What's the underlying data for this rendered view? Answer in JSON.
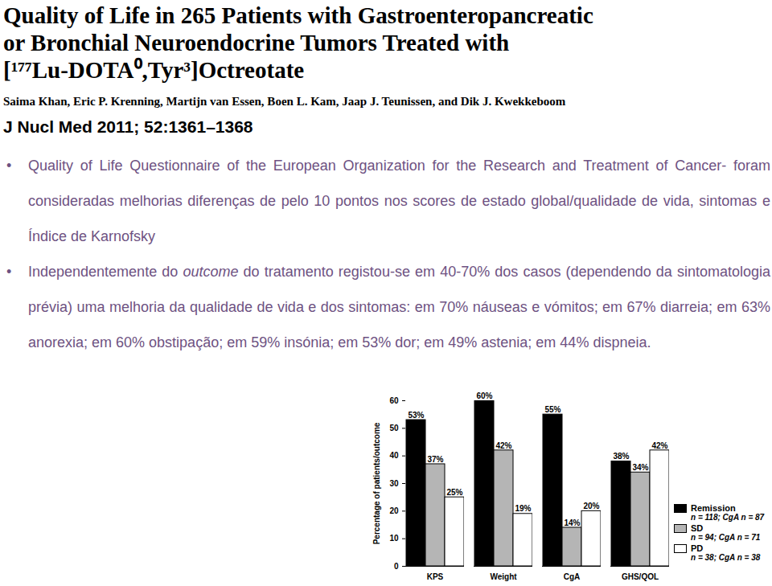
{
  "header": {
    "title": [
      "Quality of Life in 265 Patients with Gastroenteropancreatic",
      "or Bronchial Neuroendocrine Tumors Treated with",
      "[¹⁷⁷Lu-DOTA⁰,Tyr³]Octreotate"
    ],
    "authors": "Saima Khan, Eric P. Krenning, Martijn van Essen, Boen L. Kam, Jaap J. Teunissen, and Dik J. Kwekkeboom",
    "journal": "J Nucl Med 2011; 52:1361–1368"
  },
  "bullets": [
    [
      {
        "text": "Quality of Life Questionnaire of the European Organization for the Research and Treatment of Cancer- foram consideradas melhorias diferenças de pelo 10 pontos nos scores de estado global/qualidade de vida, sintomas e Índice de Karnofsky"
      }
    ],
    [
      {
        "text": "Independentemente do "
      },
      {
        "text": "outcome",
        "italic": true
      },
      {
        "text": " do tratamento registou-se em 40-70% dos casos (dependendo da sintomatologia prévia) uma melhoria da qualidade de vida e dos sintomas: em 70% náuseas e vómitos; em 67% diarreia; em 63% anorexia; em 60% obstipação; em 59% insónia; em 53% dor; em 49% astenia; em 44% dispneia."
      }
    ]
  ],
  "chart_data": {
    "type": "bar",
    "y_label": "Percentage of patients/outcome",
    "categories": [
      "KPS",
      "Weight",
      "CgA",
      "GHS/QOL"
    ],
    "ylim": [
      0,
      60
    ],
    "yticks": [
      0,
      10,
      20,
      30,
      40,
      50,
      60
    ],
    "data_labels": true,
    "series": [
      {
        "name": "Remission",
        "n_label": "n = 118; CgA n = 87",
        "color": "#000000",
        "values": [
          53,
          60,
          55,
          38
        ],
        "value_labels": [
          "53%",
          "60%",
          "55%",
          "38%"
        ]
      },
      {
        "name": "SD",
        "n_label": "n = 94; CgA n = 71",
        "color": "#b5b5b5",
        "values": [
          37,
          42,
          14,
          34
        ],
        "value_labels": [
          "37%",
          "42%",
          "14%",
          "34%"
        ]
      },
      {
        "name": "PD",
        "n_label": "n = 38; CgA n = 38",
        "color": "#ffffff",
        "values": [
          25,
          19,
          20,
          42
        ],
        "value_labels": [
          "25%",
          "19%",
          "20%",
          "42%"
        ]
      }
    ]
  }
}
